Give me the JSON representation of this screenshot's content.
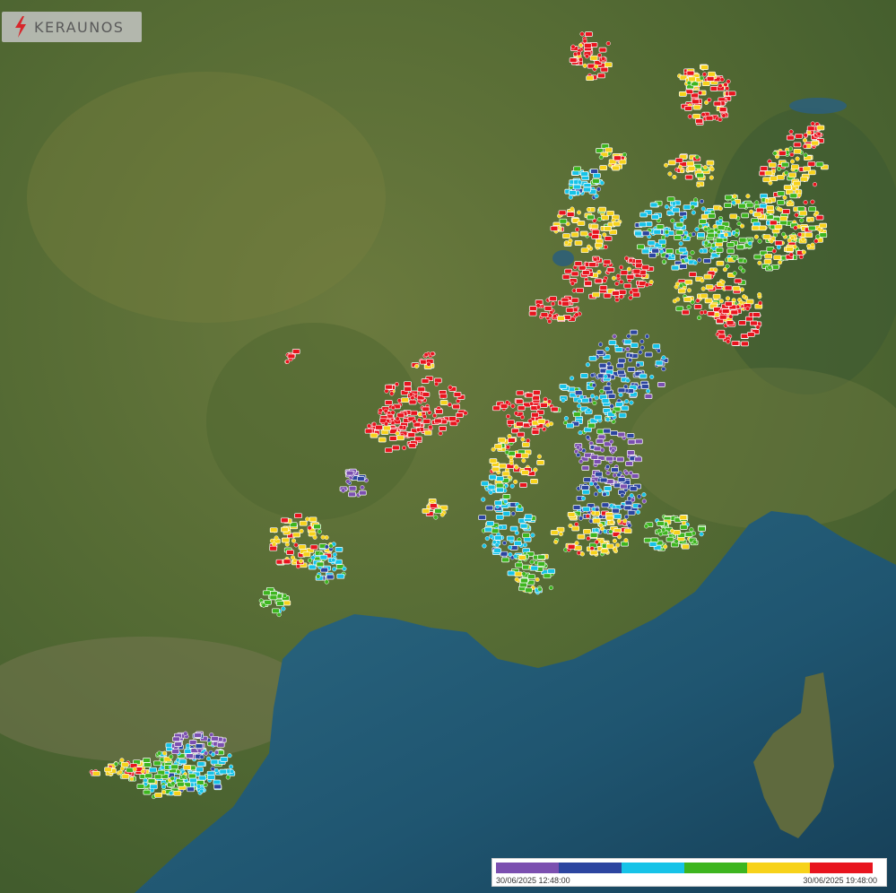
{
  "brand": {
    "name": "KERAUNOS",
    "accent": "#d7262b"
  },
  "map": {
    "icon": "lightning-map"
  },
  "legend": {
    "start_label": "30/06/2025 12:48:00",
    "end_label": "30/06/2025 19:48:00",
    "colors": [
      "#7b4fb0",
      "#2c45a0",
      "#16c3e8",
      "#3db51f",
      "#f7d21a",
      "#e8141e"
    ]
  }
}
